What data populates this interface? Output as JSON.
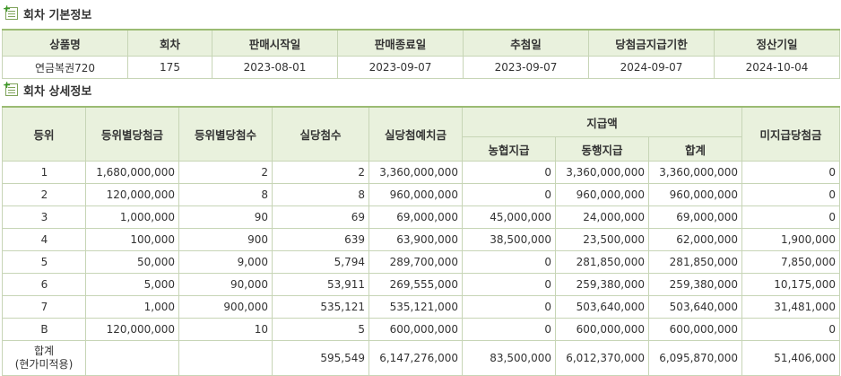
{
  "basic": {
    "title": "회차 기본정보",
    "headers": [
      "상품명",
      "회차",
      "판매시작일",
      "판매종료일",
      "추첨일",
      "당첨금지급기한",
      "정산기일"
    ],
    "row": [
      "연금복권720",
      "175",
      "2023-08-01",
      "2023-09-07",
      "2023-09-07",
      "2024-09-07",
      "2024-10-04"
    ]
  },
  "detail": {
    "title": "회차 상세정보",
    "headers": {
      "rank": "등위",
      "per_rank_prize": "등위별당첨금",
      "per_rank_count": "등위별당첨수",
      "actual_count": "실당첨수",
      "actual_prize": "실당첨예치금",
      "payment": "지급액",
      "nh": "농협지급",
      "bank": "동행지급",
      "sum": "합계",
      "unpaid": "미지급당첨금"
    },
    "rows": [
      [
        "1",
        "1,680,000,000",
        "2",
        "2",
        "3,360,000,000",
        "0",
        "3,360,000,000",
        "3,360,000,000",
        "0"
      ],
      [
        "2",
        "120,000,000",
        "8",
        "8",
        "960,000,000",
        "0",
        "960,000,000",
        "960,000,000",
        "0"
      ],
      [
        "3",
        "1,000,000",
        "90",
        "69",
        "69,000,000",
        "45,000,000",
        "24,000,000",
        "69,000,000",
        "0"
      ],
      [
        "4",
        "100,000",
        "900",
        "639",
        "63,900,000",
        "38,500,000",
        "23,500,000",
        "62,000,000",
        "1,900,000"
      ],
      [
        "5",
        "50,000",
        "9,000",
        "5,794",
        "289,700,000",
        "0",
        "281,850,000",
        "281,850,000",
        "7,850,000"
      ],
      [
        "6",
        "5,000",
        "90,000",
        "53,911",
        "269,555,000",
        "0",
        "259,380,000",
        "259,380,000",
        "10,175,000"
      ],
      [
        "7",
        "1,000",
        "900,000",
        "535,121",
        "535,121,000",
        "0",
        "503,640,000",
        "503,640,000",
        "31,481,000"
      ],
      [
        "B",
        "120,000,000",
        "10",
        "5",
        "600,000,000",
        "0",
        "600,000,000",
        "600,000,000",
        "0"
      ]
    ],
    "total": {
      "label_line1": "합계",
      "label_line2": "(현가미적용)",
      "values": [
        "",
        "",
        "595,549",
        "6,147,276,000",
        "83,500,000",
        "6,012,370,000",
        "6,095,870,000",
        "51,406,000"
      ]
    }
  }
}
